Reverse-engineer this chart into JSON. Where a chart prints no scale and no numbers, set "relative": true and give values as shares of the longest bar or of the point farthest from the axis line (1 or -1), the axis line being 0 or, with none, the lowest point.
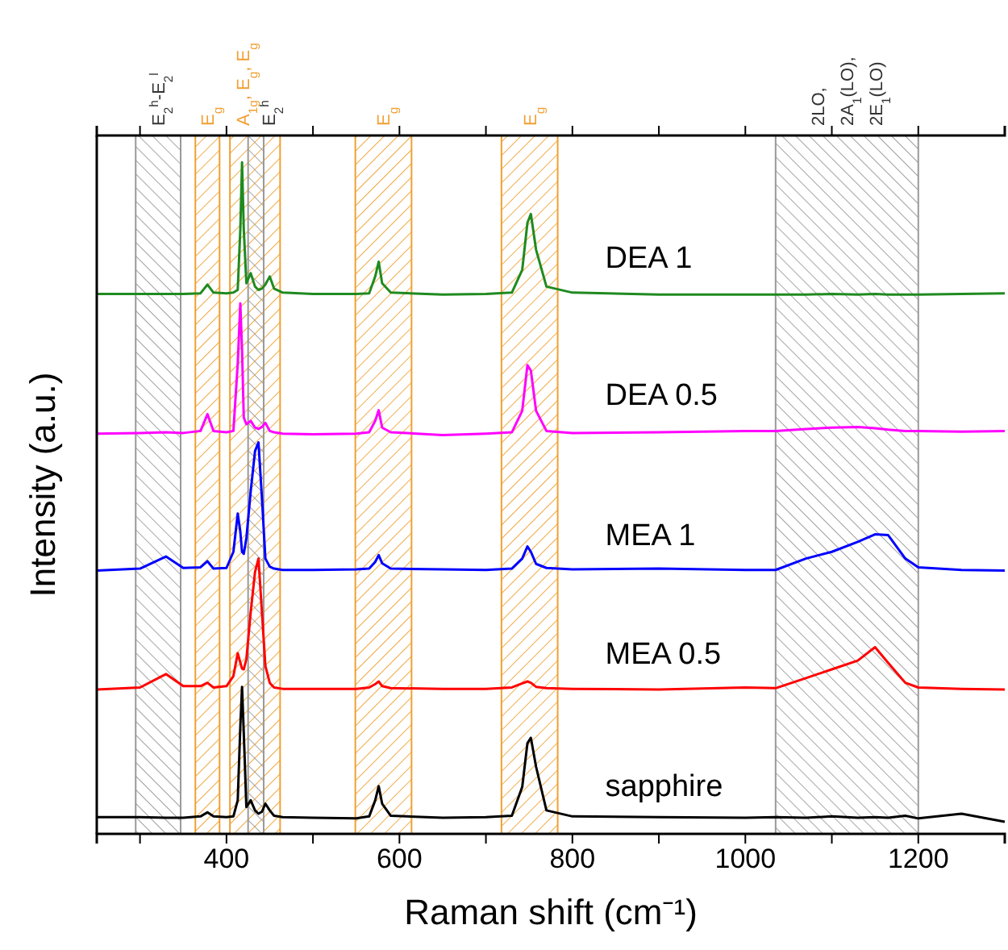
{
  "chart_data": {
    "type": "line",
    "xlabel": "Raman shift (cm⁻¹)",
    "ylabel": "Intensity (a.u.)",
    "relative": true,
    "grid": false,
    "line_style": "solid",
    "xlim": [
      250,
      1300
    ],
    "xticks": [
      {
        "value": 300,
        "label": null
      },
      400,
      {
        "value": 500,
        "label": null
      },
      600,
      {
        "value": 700,
        "label": null
      },
      800,
      {
        "value": 900,
        "label": null
      },
      1000,
      {
        "value": 1100,
        "label": null
      },
      1200,
      {
        "value": 1300,
        "label": null
      }
    ],
    "x": [
      250,
      300,
      330,
      350,
      370,
      378,
      385,
      400,
      408,
      413,
      416,
      418,
      420,
      423,
      428,
      433,
      437,
      441,
      445,
      450,
      455,
      465,
      500,
      550,
      565,
      572,
      576,
      580,
      590,
      650,
      700,
      730,
      742,
      748,
      752,
      758,
      770,
      800,
      900,
      1000,
      1035,
      1070,
      1100,
      1130,
      1150,
      1165,
      1185,
      1200,
      1250,
      1300
    ],
    "series": [
      {
        "name": "DEA 1",
        "color": "#1f8a1f",
        "values": [
          0.804,
          0.804,
          0.804,
          0.804,
          0.805,
          0.818,
          0.806,
          0.805,
          0.806,
          0.81,
          0.9,
          1.0,
          0.9,
          0.82,
          0.835,
          0.815,
          0.81,
          0.812,
          0.818,
          0.83,
          0.812,
          0.806,
          0.804,
          0.804,
          0.805,
          0.83,
          0.852,
          0.82,
          0.806,
          0.803,
          0.804,
          0.806,
          0.84,
          0.91,
          0.923,
          0.87,
          0.815,
          0.806,
          0.803,
          0.803,
          0.803,
          0.803,
          0.804,
          0.803,
          0.804,
          0.803,
          0.803,
          0.803,
          0.804,
          0.805
        ]
      },
      {
        "name": "DEA 0.5",
        "color": "#ff00ff",
        "values": [
          0.596,
          0.597,
          0.598,
          0.597,
          0.6,
          0.625,
          0.6,
          0.598,
          0.6,
          0.7,
          0.79,
          0.72,
          0.62,
          0.61,
          0.615,
          0.605,
          0.603,
          0.606,
          0.612,
          0.6,
          0.598,
          0.596,
          0.595,
          0.596,
          0.598,
          0.615,
          0.631,
          0.605,
          0.598,
          0.594,
          0.596,
          0.598,
          0.63,
          0.698,
          0.69,
          0.63,
          0.6,
          0.597,
          0.598,
          0.6,
          0.6,
          0.603,
          0.605,
          0.606,
          0.604,
          0.602,
          0.6,
          0.6,
          0.599,
          0.6
        ]
      },
      {
        "name": "MEA 1",
        "color": "#0000ff",
        "values": [
          0.392,
          0.395,
          0.413,
          0.396,
          0.397,
          0.406,
          0.395,
          0.396,
          0.42,
          0.477,
          0.45,
          0.42,
          0.417,
          0.44,
          0.51,
          0.57,
          0.583,
          0.5,
          0.41,
          0.398,
          0.395,
          0.393,
          0.393,
          0.394,
          0.395,
          0.405,
          0.415,
          0.403,
          0.395,
          0.394,
          0.393,
          0.395,
          0.41,
          0.428,
          0.42,
          0.402,
          0.396,
          0.394,
          0.395,
          0.393,
          0.393,
          0.41,
          0.42,
          0.435,
          0.446,
          0.445,
          0.41,
          0.397,
          0.393,
          0.392
        ]
      },
      {
        "name": "MEA 0.5",
        "color": "#ff0000",
        "values": [
          0.215,
          0.218,
          0.238,
          0.22,
          0.22,
          0.225,
          0.218,
          0.22,
          0.235,
          0.269,
          0.255,
          0.246,
          0.245,
          0.26,
          0.33,
          0.39,
          0.41,
          0.33,
          0.25,
          0.225,
          0.218,
          0.216,
          0.216,
          0.216,
          0.218,
          0.223,
          0.227,
          0.22,
          0.217,
          0.216,
          0.216,
          0.218,
          0.224,
          0.227,
          0.225,
          0.219,
          0.217,
          0.216,
          0.215,
          0.218,
          0.217,
          0.232,
          0.245,
          0.258,
          0.278,
          0.255,
          0.225,
          0.218,
          0.216,
          0.215
        ]
      },
      {
        "name": "sapphire",
        "color": "#000000",
        "values": [
          0.025,
          0.025,
          0.024,
          0.024,
          0.026,
          0.032,
          0.026,
          0.025,
          0.026,
          0.05,
          0.16,
          0.219,
          0.15,
          0.04,
          0.05,
          0.035,
          0.03,
          0.033,
          0.045,
          0.035,
          0.027,
          0.025,
          0.024,
          0.023,
          0.026,
          0.05,
          0.071,
          0.045,
          0.027,
          0.024,
          0.025,
          0.027,
          0.07,
          0.135,
          0.143,
          0.1,
          0.035,
          0.026,
          0.025,
          0.024,
          0.025,
          0.024,
          0.026,
          0.024,
          0.025,
          0.024,
          0.027,
          0.023,
          0.03,
          0.018
        ]
      }
    ],
    "bands": [
      {
        "axis": "x",
        "from": 295,
        "to": 347,
        "label": "E$_{2}$$^{h}$-E$_{2}$$^{l}$",
        "color": "#999999"
      },
      {
        "axis": "x",
        "from": 364,
        "to": 392,
        "label": "E$_{g}$",
        "color": "#f0a033"
      },
      {
        "axis": "x",
        "from": 404,
        "to": 462,
        "label": "A$_{1g}$, E$_{g}$, E$_{g}$",
        "color": "#f0a033"
      },
      {
        "axis": "x",
        "from": 425,
        "to": 443,
        "label": "E$_{2}$$^{h}$",
        "color": "#999999"
      },
      {
        "axis": "x",
        "from": 549,
        "to": 614,
        "label": "E$_{g}$",
        "color": "#f0a033"
      },
      {
        "axis": "x",
        "from": 718,
        "to": 783,
        "label": "E$_{g}$",
        "color": "#f0a033"
      },
      {
        "axis": "x",
        "from": 1035,
        "to": 1200,
        "label": "2LO,\n2A$_{1}$(LO),\n2E$_{1}$(LO)",
        "color": "#999999"
      }
    ]
  }
}
